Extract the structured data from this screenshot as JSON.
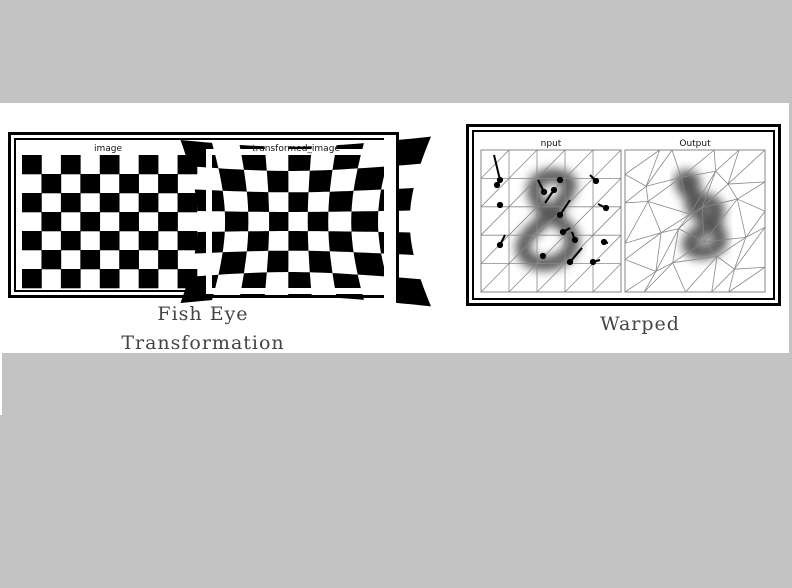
{
  "figure": {
    "fisheye": {
      "label_left": "image",
      "label_right": "transformed_image",
      "caption_line1": "Fish Eye",
      "caption_line2": "Transformation"
    },
    "warp": {
      "label_left": "nput",
      "label_right": "Output",
      "caption": "Warped"
    }
  },
  "colors": {
    "background": "#c3c3c3",
    "panel": "#ffffff",
    "ink": "#000000",
    "blur": "#555555"
  }
}
